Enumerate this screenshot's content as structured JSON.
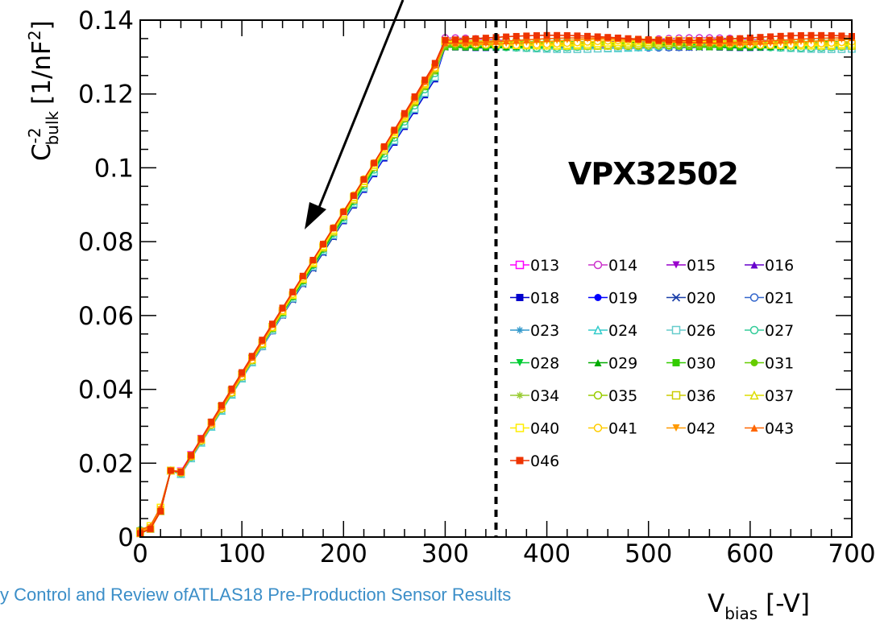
{
  "footer_text": "y Control and Review ofATLAS18 Pre-Production Sensor Results",
  "chart_data": {
    "type": "line",
    "title": "VPX32502",
    "xlabel": {
      "main": "V",
      "sub": "bias",
      "unit": "[-V]"
    },
    "ylabel": {
      "main": "C",
      "sup": "-2",
      "sub": "bulk",
      "unit_pre": "[1/nF",
      "unit_sup": "2",
      "unit_post": "]"
    },
    "xlim": [
      0,
      700
    ],
    "ylim": [
      0,
      0.14
    ],
    "x_ticks": [
      "0",
      "100",
      "200",
      "300",
      "400",
      "500",
      "600",
      "700"
    ],
    "y_ticks": [
      "0",
      "0.02",
      "0.04",
      "0.06",
      "0.08",
      "0.1",
      "0.12",
      "0.14"
    ],
    "x_tick_values": [
      0,
      100,
      200,
      300,
      400,
      500,
      600,
      700
    ],
    "y_tick_values": [
      0,
      0.02,
      0.04,
      0.06,
      0.08,
      0.1,
      0.12,
      0.14
    ],
    "vline_x": 350,
    "annotation": "arrow pointing to the linear rise region",
    "grid": false,
    "legend_placement": "bottom-right",
    "x_step": 10,
    "depletion_voltage": 300,
    "series": [
      {
        "name": "013",
        "color": "#ff00ff",
        "marker": "open-square",
        "slope": 0.000437,
        "plateau": 0.1335
      },
      {
        "name": "014",
        "color": "#cc33cc",
        "marker": "open-circle",
        "slope": 0.000436,
        "plateau": 0.1345
      },
      {
        "name": "015",
        "color": "#9900cc",
        "marker": "down-triangle",
        "slope": 0.000434,
        "plateau": 0.1335
      },
      {
        "name": "016",
        "color": "#6600cc",
        "marker": "triangle",
        "slope": 0.000432,
        "plateau": 0.1333
      },
      {
        "name": "018",
        "color": "#0000cc",
        "marker": "square",
        "slope": 0.000428,
        "plateau": 0.1332
      },
      {
        "name": "019",
        "color": "#0000ff",
        "marker": "circle",
        "slope": 0.000429,
        "plateau": 0.1334
      },
      {
        "name": "020",
        "color": "#1a3fa8",
        "marker": "cross",
        "slope": 0.00043,
        "plateau": 0.1333
      },
      {
        "name": "021",
        "color": "#3366cc",
        "marker": "open-circle",
        "slope": 0.000431,
        "plateau": 0.1332
      },
      {
        "name": "023",
        "color": "#3399cc",
        "marker": "star",
        "slope": 0.000433,
        "plateau": 0.1331
      },
      {
        "name": "024",
        "color": "#33cccc",
        "marker": "open-triangle",
        "slope": 0.000432,
        "plateau": 0.133
      },
      {
        "name": "026",
        "color": "#66cccc",
        "marker": "open-square",
        "slope": 0.00043,
        "plateau": 0.1328
      },
      {
        "name": "027",
        "color": "#33cc99",
        "marker": "open-circle",
        "slope": 0.000433,
        "plateau": 0.1331
      },
      {
        "name": "028",
        "color": "#00cc33",
        "marker": "down-triangle",
        "slope": 0.000434,
        "plateau": 0.1332
      },
      {
        "name": "029",
        "color": "#00aa00",
        "marker": "triangle",
        "slope": 0.000435,
        "plateau": 0.1333
      },
      {
        "name": "030",
        "color": "#33cc00",
        "marker": "square",
        "slope": 0.000435,
        "plateau": 0.1334
      },
      {
        "name": "031",
        "color": "#66cc00",
        "marker": "circle",
        "slope": 0.000436,
        "plateau": 0.1335
      },
      {
        "name": "034",
        "color": "#99cc33",
        "marker": "star",
        "slope": 0.000436,
        "plateau": 0.1335
      },
      {
        "name": "035",
        "color": "#99cc00",
        "marker": "open-circle",
        "slope": 0.000437,
        "plateau": 0.1336
      },
      {
        "name": "036",
        "color": "#cccc00",
        "marker": "open-square",
        "slope": 0.000437,
        "plateau": 0.1337
      },
      {
        "name": "037",
        "color": "#dddd00",
        "marker": "open-triangle",
        "slope": 0.000438,
        "plateau": 0.1337
      },
      {
        "name": "040",
        "color": "#ffee00",
        "marker": "open-square",
        "slope": 0.000438,
        "plateau": 0.1338
      },
      {
        "name": "041",
        "color": "#ffcc00",
        "marker": "open-circle",
        "slope": 0.000439,
        "plateau": 0.1339
      },
      {
        "name": "042",
        "color": "#ff9900",
        "marker": "down-triangle",
        "slope": 0.00044,
        "plateau": 0.1342
      },
      {
        "name": "043",
        "color": "#ff6600",
        "marker": "triangle",
        "slope": 0.000441,
        "plateau": 0.1345
      },
      {
        "name": "046",
        "color": "#ee3300",
        "marker": "square",
        "slope": 0.000442,
        "plateau": 0.1352
      }
    ]
  }
}
